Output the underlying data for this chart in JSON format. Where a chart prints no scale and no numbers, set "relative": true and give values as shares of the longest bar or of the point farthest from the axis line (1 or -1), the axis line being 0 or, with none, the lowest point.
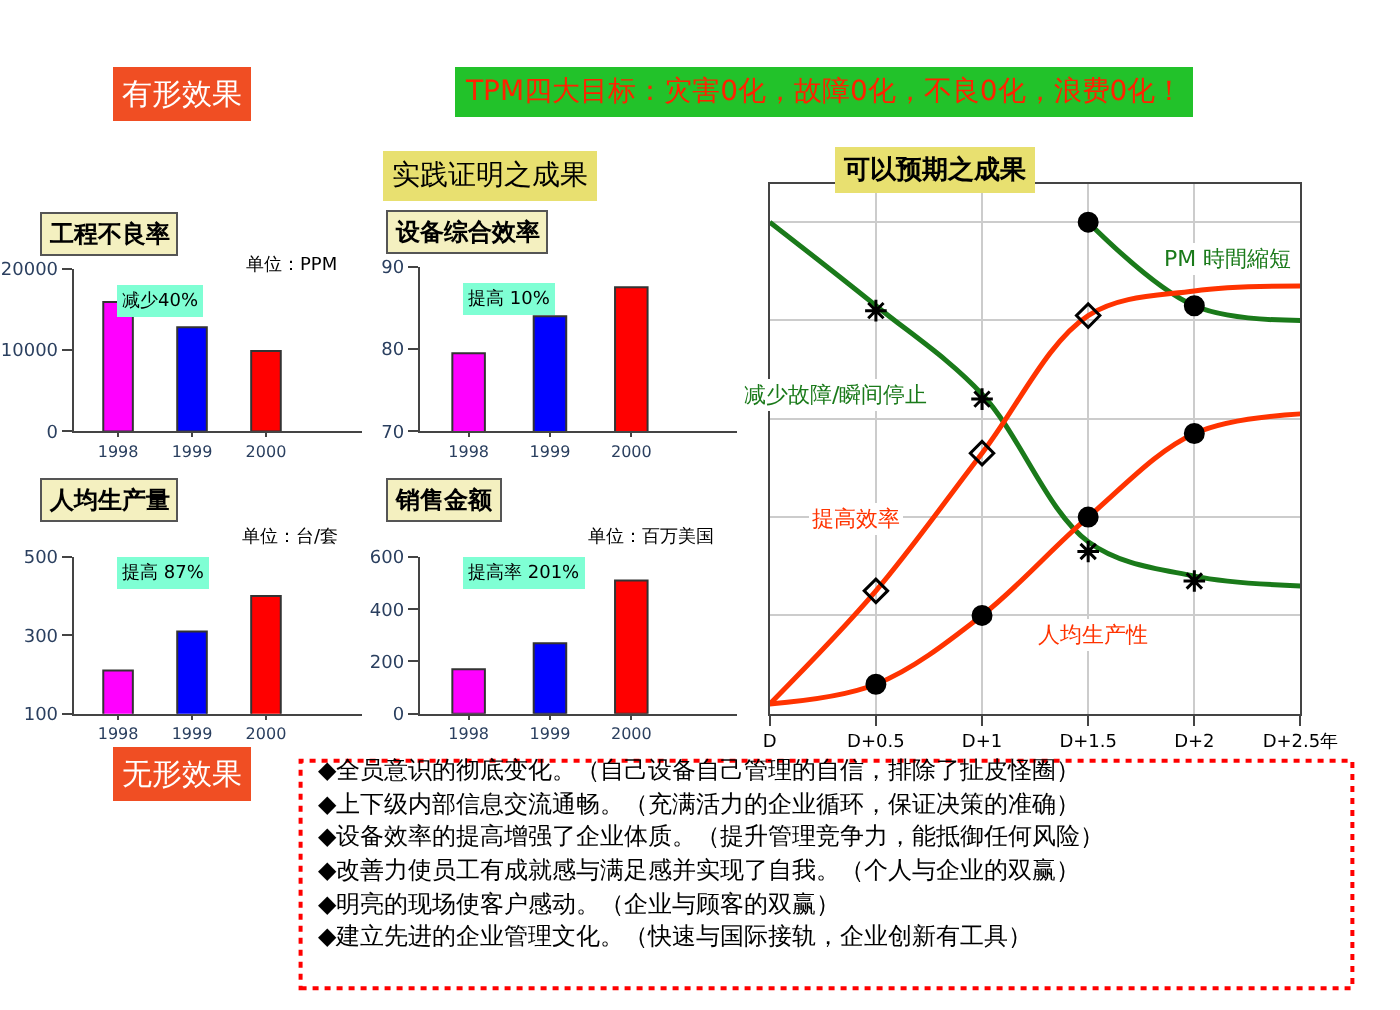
{
  "chart_data": [
    {
      "type": "other",
      "annotations": [
        "有形效果",
        "TPM四大目标：灾害0化，故障0化，不良0化，浪费0化！",
        "实践证明之成果",
        "无形效果",
        "◆全员意识的彻底变化。（自己设备自己管理的自信，排除了扯皮怪圈）",
        "◆上下级内部信息交流通畅。（充满活力的企业循环，保证决策的准确）",
        "◆设备效率的提高增强了企业体质。（提升管理竞争力，能抵御任何风险）",
        "◆改善力使员工有成就感与满足感并实现了自我。（个人与企业的双赢）",
        "◆明亮的现场使客户感动。（企业与顾客的双赢）",
        "◆建立先进的企业管理文化。（快速与国际接轨，企业创新有工具）"
      ]
    },
    {
      "type": "bar",
      "title": "工程不良率",
      "subtitle": "单位：PPM",
      "annotations": [
        "减少40%"
      ],
      "categories": [
        "1998",
        "1999",
        "2000"
      ],
      "values": [
        15900,
        12800,
        9900
      ],
      "colors": [
        "#ff00ff",
        "#0000ff",
        "#ff0000"
      ],
      "ylim": [
        0,
        20000
      ],
      "yticks": [
        0,
        10000,
        20000
      ]
    },
    {
      "type": "bar",
      "title": "设备综合效率",
      "annotations": [
        "提高 10%"
      ],
      "categories": [
        "1998",
        "1999",
        "2000"
      ],
      "values": [
        79.5,
        84,
        87.5
      ],
      "colors": [
        "#ff00ff",
        "#0000ff",
        "#ff0000"
      ],
      "ylim": [
        70,
        90
      ],
      "yticks": [
        70,
        80,
        90
      ]
    },
    {
      "type": "bar",
      "title": "人均生产量",
      "subtitle": "单位：台/套",
      "annotations": [
        "提高 87%"
      ],
      "categories": [
        "1998",
        "1999",
        "2000"
      ],
      "values": [
        210,
        310,
        400
      ],
      "colors": [
        "#ff00ff",
        "#0000ff",
        "#ff0000"
      ],
      "ylim": [
        100,
        500
      ],
      "yticks": [
        100,
        300,
        500
      ]
    },
    {
      "type": "bar",
      "title": "销售金额",
      "subtitle": "单位：百万美国",
      "annotations": [
        "提高率 201%"
      ],
      "categories": [
        "1998",
        "1999",
        "2000"
      ],
      "values": [
        170,
        270,
        510
      ],
      "colors": [
        "#ff00ff",
        "#0000ff",
        "#ff0000"
      ],
      "ylim": [
        0,
        600
      ],
      "yticks": [
        0,
        200,
        400,
        600
      ]
    },
    {
      "type": "line",
      "title": "可以预期之成果",
      "relative": true,
      "grid": true,
      "categories": [
        "D",
        "D+0.5",
        "D+1",
        "D+1.5",
        "D+2",
        "D+2.5年"
      ],
      "series": [
        {
          "name": "减少故障/瞬间停止",
          "color": "#1a7a1a",
          "marker": "none",
          "values": [
            1.0,
            0.83,
            0.65,
            0.35,
            0.28,
            0.26
          ]
        },
        {
          "type": "scatter",
          "color": "#000000",
          "marker": "cross",
          "values": [
            null,
            0.82,
            0.64,
            0.33,
            0.27,
            null
          ]
        },
        {
          "name": "PM 時間縮短",
          "color": "#1a7a1a",
          "marker": "none",
          "values": [
            null,
            null,
            null,
            1.0,
            0.83,
            0.8
          ]
        },
        {
          "type": "scatter",
          "color": "#000000",
          "marker": "circle",
          "values": [
            null,
            null,
            null,
            1.0,
            0.83,
            null
          ]
        },
        {
          "name": "提高效率",
          "color": "#ff3300",
          "marker": "none",
          "values": [
            0.02,
            0.25,
            0.53,
            0.81,
            0.86,
            0.87
          ]
        },
        {
          "type": "scatter",
          "color": "#000000",
          "marker": "diamond",
          "values": [
            null,
            0.25,
            0.53,
            0.81,
            null,
            null
          ]
        },
        {
          "name": "人均生产性",
          "color": "#ff3300",
          "marker": "none",
          "values": [
            0.02,
            0.06,
            0.2,
            0.4,
            0.57,
            0.61
          ]
        },
        {
          "type": "scatter",
          "color": "#000000",
          "marker": "circle",
          "values": [
            null,
            0.06,
            0.2,
            0.4,
            0.57,
            null
          ]
        }
      ]
    }
  ]
}
